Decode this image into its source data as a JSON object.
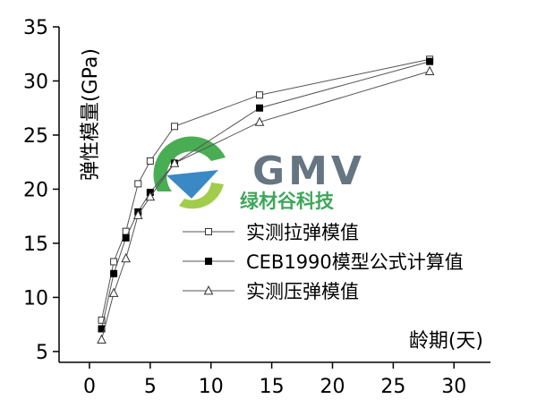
{
  "chart_data": {
    "type": "line",
    "xlabel": "龄期(天)",
    "ylabel": "弹性模量(GPa)",
    "xlim": [
      -2.5,
      33
    ],
    "ylim": [
      4,
      35
    ],
    "xticks": [
      0,
      5,
      10,
      15,
      20,
      25,
      30
    ],
    "yticks": [
      5,
      10,
      15,
      20,
      25,
      30,
      35
    ],
    "grid": false,
    "legend_position": "right-middle",
    "series": [
      {
        "name": "实测拉弹模值",
        "marker": "open-square",
        "x": [
          1,
          2,
          3,
          4,
          5,
          7,
          14,
          28
        ],
        "y": [
          7.9,
          13.3,
          16.1,
          20.5,
          22.6,
          25.8,
          28.7,
          32.0
        ]
      },
      {
        "name": "CEB1990模型公式计算值",
        "marker": "filled-square",
        "x": [
          1,
          2,
          3,
          4,
          5,
          7,
          14,
          28
        ],
        "y": [
          7.1,
          12.2,
          15.5,
          17.9,
          19.7,
          22.4,
          27.5,
          31.8
        ]
      },
      {
        "name": "实测压弹模值",
        "marker": "open-triangle",
        "x": [
          1,
          2,
          3,
          4,
          5,
          7,
          14,
          28
        ],
        "y": [
          6.1,
          10.4,
          13.6,
          17.6,
          19.3,
          22.4,
          26.2,
          30.9
        ]
      }
    ]
  },
  "watermark": {
    "brand": "GMV",
    "tagline": "绿材谷科技"
  },
  "colors": {
    "line": "#555555",
    "axis": "#000000",
    "logo_green": "#3aa845",
    "logo_blue": "#2a7fc1",
    "logo_gray": "#5a6a78"
  }
}
